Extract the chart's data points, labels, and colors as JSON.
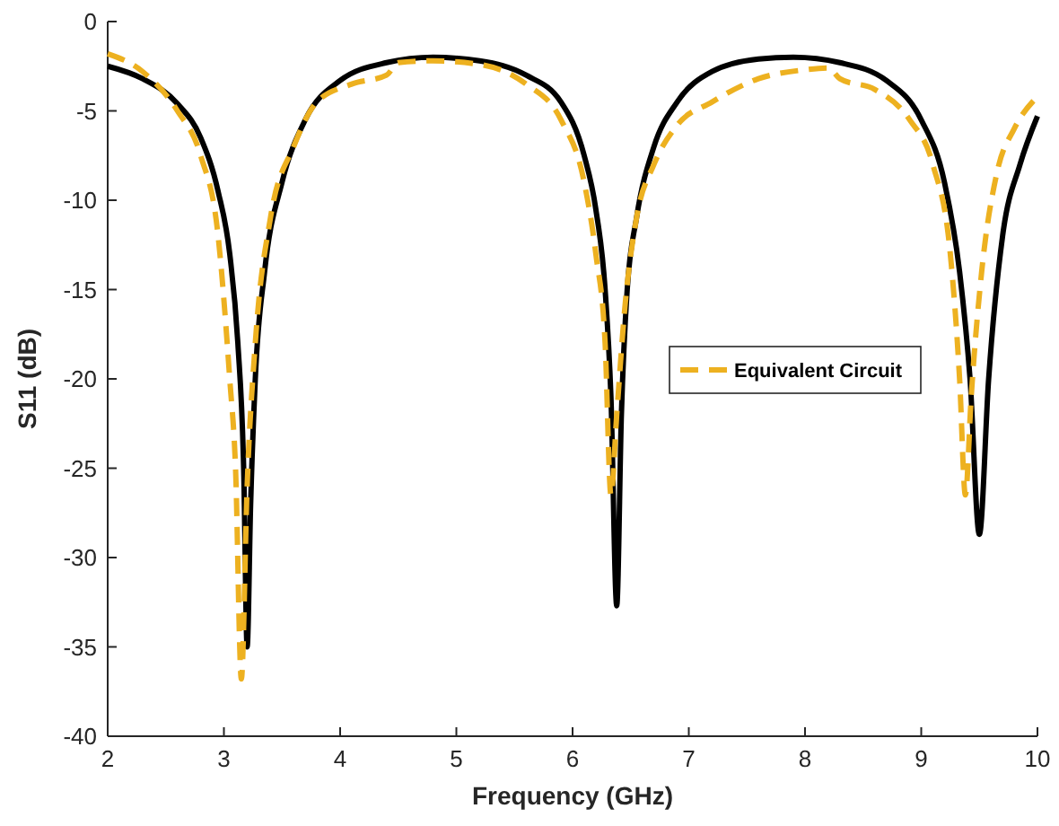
{
  "chart_data": {
    "type": "line",
    "xlabel": "Frequency (GHz)",
    "ylabel": "S11 (dB)",
    "xlim": [
      2,
      10
    ],
    "ylim": [
      -40,
      0
    ],
    "xticks": [
      2,
      3,
      4,
      5,
      6,
      7,
      8,
      9,
      10
    ],
    "yticks": [
      -40,
      -35,
      -30,
      -25,
      -20,
      -15,
      -10,
      -5,
      0
    ],
    "grid": false,
    "legend": "right",
    "series": [
      {
        "color": "#000000",
        "line_style": "solid",
        "x": [
          2.0,
          2.3,
          2.6,
          2.8,
          2.95,
          3.05,
          3.12,
          3.17,
          3.2,
          3.23,
          3.27,
          3.35,
          3.5,
          3.7,
          4.0,
          4.4,
          4.8,
          5.2,
          5.6,
          5.9,
          6.1,
          6.2,
          6.28,
          6.33,
          6.38,
          6.42,
          6.47,
          6.55,
          6.7,
          6.9,
          7.2,
          7.6,
          7.9,
          8.3,
          8.7,
          9.0,
          9.2,
          9.33,
          9.42,
          9.5,
          9.58,
          9.7,
          9.85,
          10
        ],
        "values": [
          -2.5,
          -3.2,
          -4.6,
          -6.5,
          -9.5,
          -13,
          -18,
          -25,
          -35,
          -27,
          -20,
          -14,
          -9,
          -5.5,
          -3.3,
          -2.3,
          -2.0,
          -2.2,
          -3.0,
          -4.5,
          -7.5,
          -10.5,
          -15,
          -21,
          -32.7,
          -22,
          -15,
          -11,
          -7,
          -4.5,
          -2.8,
          -2.1,
          -2.0,
          -2.3,
          -3.3,
          -5.5,
          -9,
          -14,
          -20,
          -28.7,
          -20,
          -12,
          -8,
          -5.3
        ]
      },
      {
        "name": "Equivalent Circuit",
        "color": "#edb120",
        "line_style": "dashed",
        "x": [
          2.0,
          2.3,
          2.6,
          2.8,
          2.95,
          3.05,
          3.1,
          3.15,
          3.2,
          3.27,
          3.4,
          3.6,
          3.8,
          4.1,
          4.4,
          4.5,
          4.8,
          5.2,
          5.6,
          5.9,
          6.1,
          6.2,
          6.28,
          6.33,
          6.38,
          6.45,
          6.55,
          6.7,
          6.9,
          7.2,
          7.6,
          8.0,
          8.2,
          8.3,
          8.6,
          8.9,
          9.1,
          9.25,
          9.33,
          9.38,
          9.43,
          9.52,
          9.65,
          9.8,
          10
        ],
        "values": [
          -1.8,
          -2.8,
          -5,
          -7.5,
          -12,
          -20,
          -25,
          -36.8,
          -26,
          -18,
          -11,
          -7,
          -4.5,
          -3.5,
          -3.0,
          -2.3,
          -2.2,
          -2.4,
          -3.5,
          -5.5,
          -9,
          -13,
          -18,
          -26.5,
          -22,
          -16,
          -11,
          -8,
          -5.8,
          -4.5,
          -3.2,
          -2.7,
          -2.6,
          -3.2,
          -3.8,
          -5.5,
          -8,
          -13,
          -20,
          -26.5,
          -21,
          -14,
          -8.5,
          -6,
          -4.2
        ]
      }
    ]
  }
}
